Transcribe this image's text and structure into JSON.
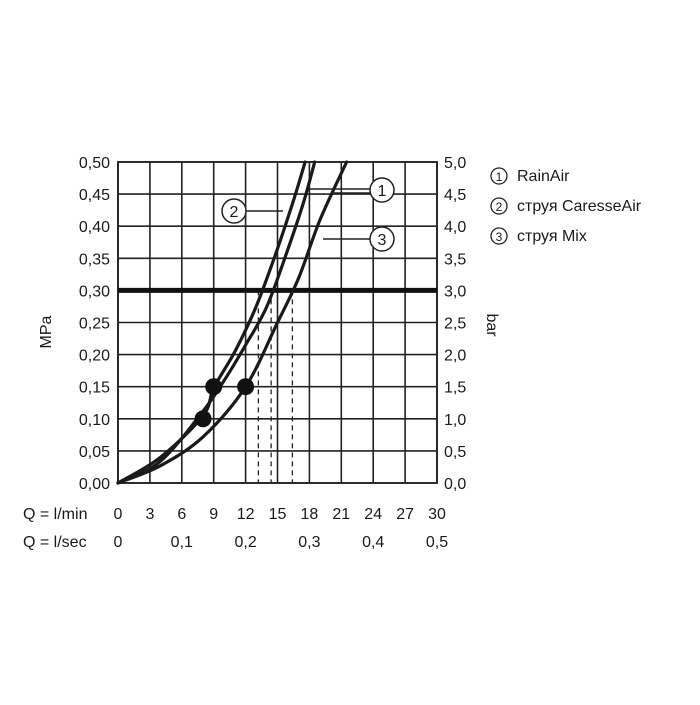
{
  "chart_data": {
    "type": "line",
    "x_unit_label": "Q = l/min",
    "x2_unit_label": "Q = l/sec",
    "xlim": [
      0,
      30
    ],
    "x_ticks": [
      "0",
      "3",
      "6",
      "9",
      "12",
      "15",
      "18",
      "21",
      "24",
      "27",
      "30"
    ],
    "x2_ticks": [
      "0",
      "0,1",
      "0,2",
      "0,3",
      "0,4",
      "0,5"
    ],
    "y_left_label": "MPa",
    "y_right_label": "bar",
    "ylim": [
      0,
      0.5
    ],
    "y_left_ticks": [
      "0,00",
      "0,05",
      "0,10",
      "0,15",
      "0,20",
      "0,25",
      "0,30",
      "0,35",
      "0,40",
      "0,45",
      "0,50"
    ],
    "y_right_ticks": [
      "0,0",
      "0,5",
      "1,0",
      "1,5",
      "2,0",
      "2,5",
      "3,0",
      "3,5",
      "4,0",
      "4,5",
      "5,0"
    ],
    "grid": true,
    "reference_line_y": 0.3,
    "series": [
      {
        "name": "RainAir",
        "marker": "1",
        "x": [
          0,
          4,
          8,
          10,
          12,
          14,
          16,
          17.5,
          18.5
        ],
        "y": [
          0,
          0.034,
          0.112,
          0.16,
          0.215,
          0.275,
          0.365,
          0.44,
          0.5
        ],
        "reference_flow": 14.4,
        "points": []
      },
      {
        "name": "струя CaresseAir",
        "marker": "2",
        "x": [
          0,
          4,
          8,
          9,
          11,
          13,
          15,
          16.5,
          17.6
        ],
        "y": [
          0,
          0.04,
          0.105,
          0.148,
          0.205,
          0.275,
          0.365,
          0.44,
          0.5
        ],
        "reference_flow": 13.2,
        "points": [
          {
            "x": 8,
            "y": 0.1
          },
          {
            "x": 9,
            "y": 0.15
          }
        ]
      },
      {
        "name": "струя Mix",
        "marker": "3",
        "x": [
          0,
          4,
          8,
          12,
          15,
          17,
          19,
          21.5
        ],
        "y": [
          0,
          0.027,
          0.072,
          0.15,
          0.25,
          0.32,
          0.41,
          0.5
        ],
        "reference_flow": 16.4,
        "points": [
          {
            "x": 12,
            "y": 0.15
          }
        ]
      }
    ]
  },
  "legend": {
    "items": [
      {
        "marker": "1",
        "label": "RainAir"
      },
      {
        "marker": "2",
        "label": "струя CaresseAir"
      },
      {
        "marker": "3",
        "label": "струя Mix"
      }
    ]
  }
}
